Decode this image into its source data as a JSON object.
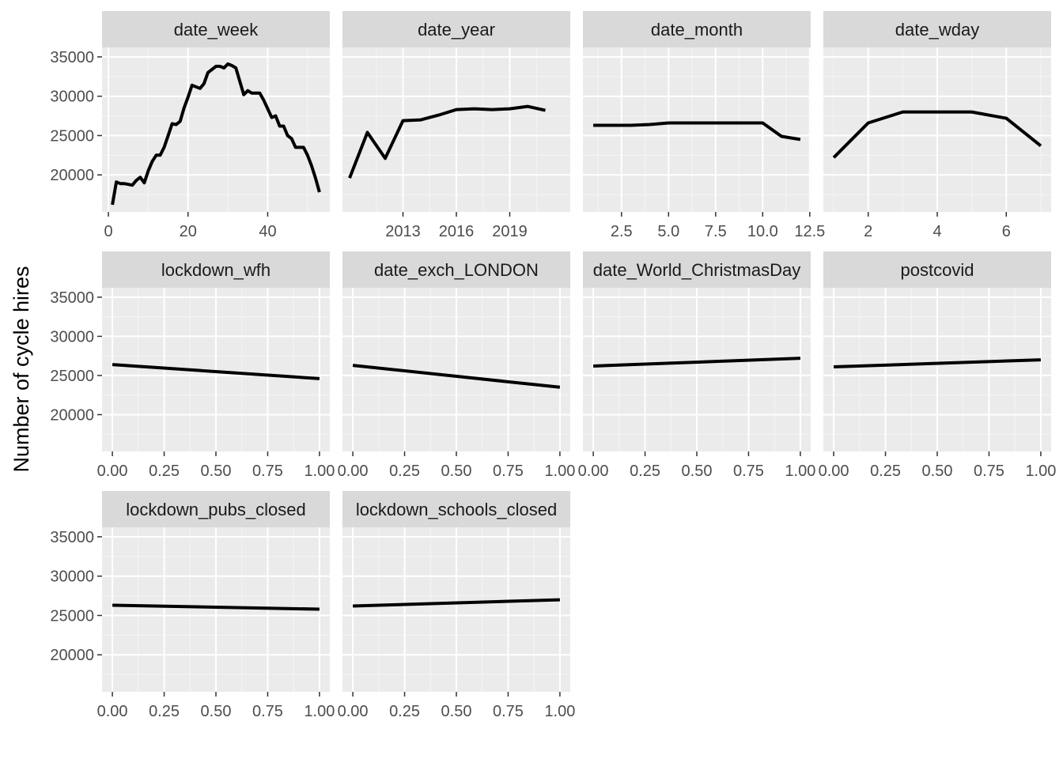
{
  "y_axis_title": "Number of cycle hires",
  "colors": {
    "panel_background": "#ebebeb",
    "strip_background": "#d9d9d9",
    "grid_major": "#ffffff",
    "grid_minor": "#f5f5f5",
    "line": "#000000",
    "tick_text": "#4d4d4d",
    "strip_text": "#1a1a1a"
  },
  "chart_data": {
    "type": "line",
    "layout": "facet grid, 3 rows x 4 columns, shared y axis",
    "ylabel": "Number of cycle hires",
    "ylim": [
      15300,
      36200
    ],
    "yticks": [
      20000,
      25000,
      30000,
      35000
    ],
    "y_tick_labels": [
      "20000",
      "25000",
      "30000",
      "35000"
    ],
    "grid": true,
    "panels": [
      {
        "title": "date_week",
        "xlim": [
          -1.6,
          55.6
        ],
        "xticks": [
          0,
          20,
          40
        ],
        "x_tick_labels": [
          "0",
          "20",
          "40"
        ],
        "x_minor": [
          10,
          30,
          50
        ],
        "x": [
          1,
          2,
          3,
          4,
          5,
          6,
          7,
          8,
          9,
          10,
          11,
          12,
          13,
          14,
          15,
          16,
          17,
          18,
          19,
          20,
          21,
          22,
          23,
          24,
          25,
          26,
          27,
          28,
          29,
          30,
          31,
          32,
          33,
          34,
          35,
          36,
          37,
          38,
          39,
          40,
          41,
          42,
          43,
          44,
          45,
          46,
          47,
          48,
          49,
          50,
          51,
          52,
          53
        ],
        "y": [
          16200,
          19100,
          18900,
          18900,
          18800,
          18700,
          19300,
          19700,
          19000,
          20500,
          21700,
          22500,
          22500,
          23500,
          25000,
          26500,
          26400,
          26800,
          28500,
          29900,
          31400,
          31200,
          31000,
          31600,
          33000,
          33400,
          33800,
          33800,
          33600,
          34100,
          33900,
          33600,
          31900,
          30200,
          30700,
          30400,
          30400,
          30400,
          29500,
          28400,
          27300,
          27500,
          26200,
          26200,
          25000,
          24600,
          23500,
          23500,
          23500,
          22500,
          21200,
          19600,
          17800
        ]
      },
      {
        "title": "date_year",
        "xlim": [
          2009.6,
          2022.4
        ],
        "xticks": [
          2013,
          2016,
          2019
        ],
        "x_tick_labels": [
          "2013",
          "2016",
          "2019"
        ],
        "x_minor": [
          2011.5,
          2014.5,
          2017.5,
          2020.5
        ],
        "x": [
          2010,
          2011,
          2012,
          2013,
          2014,
          2015,
          2016,
          2017,
          2018,
          2019,
          2020,
          2021
        ],
        "y": [
          19600,
          25400,
          22100,
          26900,
          27000,
          27600,
          28300,
          28400,
          28300,
          28400,
          28700,
          28200
        ]
      },
      {
        "title": "date_month",
        "xlim": [
          0.45,
          12.55
        ],
        "xticks": [
          2.5,
          5.0,
          7.5,
          10.0,
          12.5
        ],
        "x_tick_labels": [
          "2.5",
          "5.0",
          "7.5",
          "10.0",
          "12.5"
        ],
        "x_minor": [
          1.25,
          3.75,
          6.25,
          8.75,
          11.25
        ],
        "x": [
          1,
          2,
          3,
          4,
          5,
          6,
          7,
          8,
          9,
          10,
          11,
          12
        ],
        "y": [
          26300,
          26300,
          26300,
          26400,
          26600,
          26600,
          26600,
          26600,
          26600,
          26600,
          24900,
          24500
        ]
      },
      {
        "title": "date_wday",
        "xlim": [
          0.7,
          7.3
        ],
        "xticks": [
          2,
          4,
          6
        ],
        "x_tick_labels": [
          "2",
          "4",
          "6"
        ],
        "x_minor": [
          1,
          3,
          5,
          7
        ],
        "x": [
          1,
          2,
          3,
          4,
          5,
          6,
          7
        ],
        "y": [
          22200,
          26600,
          28000,
          28000,
          28000,
          27200,
          23700
        ]
      },
      {
        "title": "lockdown_wfh",
        "xlim": [
          -0.05,
          1.05
        ],
        "xticks": [
          0,
          0.25,
          0.5,
          0.75,
          1.0
        ],
        "x_tick_labels": [
          "0.00",
          "0.25",
          "0.50",
          "0.75",
          "1.00"
        ],
        "x_minor": [
          0.125,
          0.375,
          0.625,
          0.875
        ],
        "x": [
          0,
          1
        ],
        "y": [
          26400,
          24600
        ]
      },
      {
        "title": "date_exch_LONDON",
        "xlim": [
          -0.05,
          1.05
        ],
        "xticks": [
          0,
          0.25,
          0.5,
          0.75,
          1.0
        ],
        "x_tick_labels": [
          "0.00",
          "0.25",
          "0.50",
          "0.75",
          "1.00"
        ],
        "x_minor": [
          0.125,
          0.375,
          0.625,
          0.875
        ],
        "x": [
          0,
          1
        ],
        "y": [
          26300,
          23500
        ]
      },
      {
        "title": "date_World_ChristmasDay",
        "xlim": [
          -0.05,
          1.05
        ],
        "xticks": [
          0,
          0.25,
          0.5,
          0.75,
          1.0
        ],
        "x_tick_labels": [
          "0.00",
          "0.25",
          "0.50",
          "0.75",
          "1.00"
        ],
        "x_minor": [
          0.125,
          0.375,
          0.625,
          0.875
        ],
        "x": [
          0,
          1
        ],
        "y": [
          26200,
          27200
        ]
      },
      {
        "title": "postcovid",
        "xlim": [
          -0.05,
          1.05
        ],
        "xticks": [
          0,
          0.25,
          0.5,
          0.75,
          1.0
        ],
        "x_tick_labels": [
          "0.00",
          "0.25",
          "0.50",
          "0.75",
          "1.00"
        ],
        "x_minor": [
          0.125,
          0.375,
          0.625,
          0.875
        ],
        "x": [
          0,
          1
        ],
        "y": [
          26100,
          27000
        ]
      },
      {
        "title": "lockdown_pubs_closed",
        "xlim": [
          -0.05,
          1.05
        ],
        "xticks": [
          0,
          0.25,
          0.5,
          0.75,
          1.0
        ],
        "x_tick_labels": [
          "0.00",
          "0.25",
          "0.50",
          "0.75",
          "1.00"
        ],
        "x_minor": [
          0.125,
          0.375,
          0.625,
          0.875
        ],
        "x": [
          0,
          1
        ],
        "y": [
          26300,
          25800
        ]
      },
      {
        "title": "lockdown_schools_closed",
        "xlim": [
          -0.05,
          1.05
        ],
        "xticks": [
          0,
          0.25,
          0.5,
          0.75,
          1.0
        ],
        "x_tick_labels": [
          "0.00",
          "0.25",
          "0.50",
          "0.75",
          "1.00"
        ],
        "x_minor": [
          0.125,
          0.375,
          0.625,
          0.875
        ],
        "x": [
          0,
          1
        ],
        "y": [
          26200,
          27000
        ]
      }
    ]
  }
}
